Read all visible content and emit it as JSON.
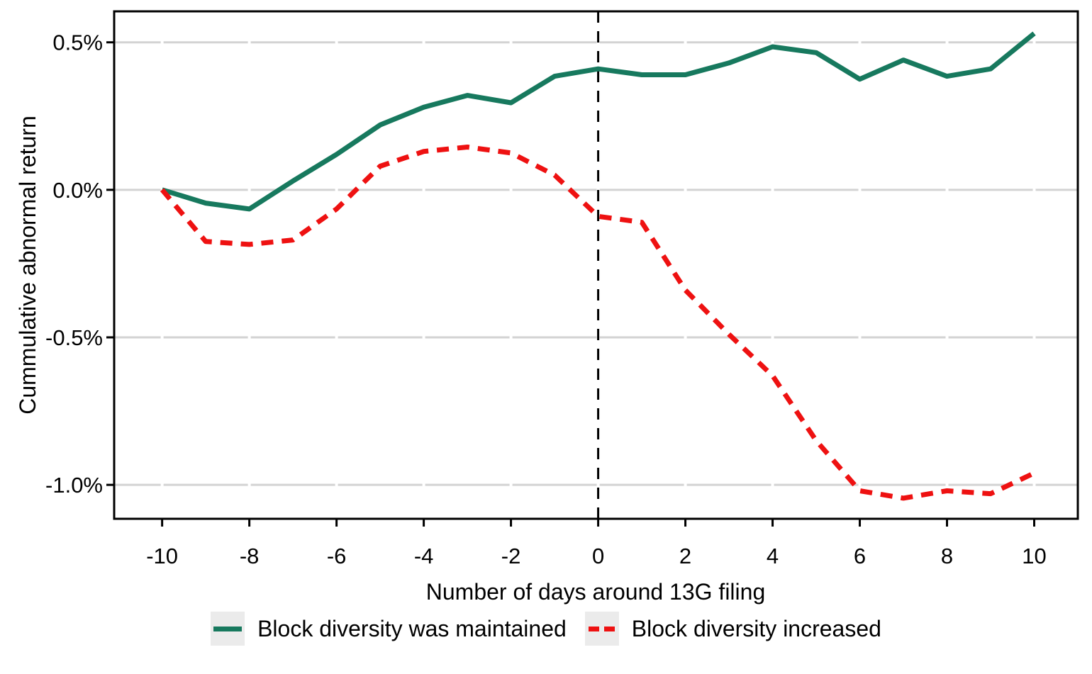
{
  "figure": {
    "xlabel": "Number of days around 13G filing",
    "ylabel": "Cummulative abnormal return"
  },
  "colors": {
    "maintained_line": "#17795E",
    "increased_line": "#EE1111",
    "gridline": "#D3D3D3",
    "axis": "#000000",
    "legend_key_background": "#EBEBEB"
  },
  "legend": {
    "items": [
      {
        "label": "Block diversity was maintained",
        "style": "solid"
      },
      {
        "label": "Block diversity increased",
        "style": "dashed"
      }
    ]
  },
  "chart_data": {
    "type": "line",
    "title": "",
    "xlabel": "Number of days around 13G filing",
    "ylabel": "Cummulative abnormal return",
    "x": [
      -10,
      -9,
      -8,
      -7,
      -6,
      -5,
      -4,
      -3,
      -2,
      -1,
      0,
      1,
      2,
      3,
      4,
      5,
      6,
      7,
      8,
      9,
      10
    ],
    "series": [
      {
        "name": "Block diversity was maintained",
        "color": "#17795E",
        "style": "solid",
        "values": [
          0.0,
          -0.045,
          -0.065,
          0.03,
          0.12,
          0.22,
          0.28,
          0.32,
          0.295,
          0.385,
          0.41,
          0.39,
          0.39,
          0.43,
          0.485,
          0.465,
          0.375,
          0.44,
          0.385,
          0.41,
          0.53
        ]
      },
      {
        "name": "Block diversity increased",
        "color": "#EE1111",
        "style": "dashed",
        "values": [
          0.0,
          -0.175,
          -0.185,
          -0.17,
          -0.065,
          0.08,
          0.13,
          0.145,
          0.125,
          0.05,
          -0.09,
          -0.11,
          -0.34,
          -0.49,
          -0.63,
          -0.85,
          -1.02,
          -1.045,
          -1.02,
          -1.03,
          -0.96
        ]
      }
    ],
    "xlim": [
      -11.1,
      11.0
    ],
    "ylim": [
      -1.115,
      0.605
    ],
    "xticks": [
      -10,
      -8,
      -6,
      -4,
      -2,
      0,
      2,
      4,
      6,
      8,
      10
    ],
    "yticks": [
      0.5,
      0.0,
      -0.5,
      -1.0
    ],
    "ytick_labels": [
      "0.5%",
      "0.0%",
      "-0.5%",
      "-1.0%"
    ],
    "vline_x": 0,
    "grid": "horizontal-major",
    "legend_position": "bottom"
  }
}
